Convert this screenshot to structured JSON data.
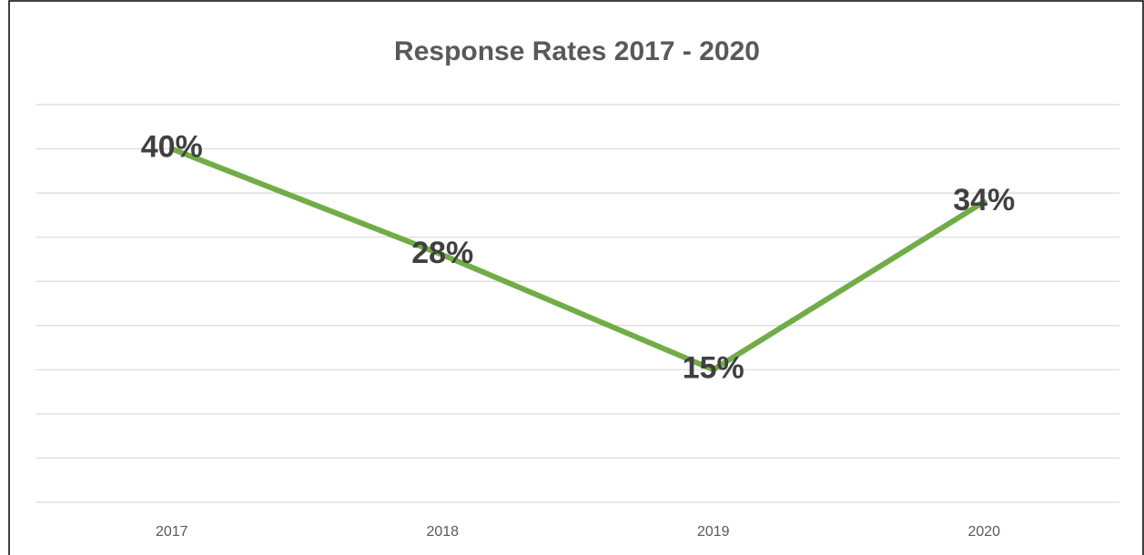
{
  "chart_data": {
    "type": "line",
    "title": "Response Rates 2017 - 2020",
    "categories": [
      "2017",
      "2018",
      "2019",
      "2020"
    ],
    "series": [
      {
        "color": "#70ad47",
        "values": [
          40,
          28,
          15,
          34
        ],
        "value_labels": [
          "40%",
          "28%",
          "15%",
          "34%"
        ]
      }
    ],
    "ylim": [
      0,
      45
    ],
    "yticks": [
      0,
      5,
      10,
      15,
      20,
      25,
      30,
      35,
      40,
      45
    ],
    "grid": true
  }
}
